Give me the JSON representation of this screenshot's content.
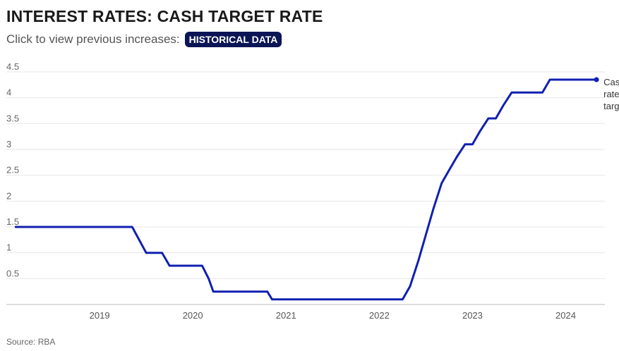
{
  "header": {
    "title": "INTEREST RATES: CASH TARGET RATE",
    "subtitle": "Click to view previous increases:",
    "button_label": "HISTORICAL DATA"
  },
  "footer": {
    "source": "Source: RBA"
  },
  "colors": {
    "line": "#1020b0",
    "button_bg": "#0b1454",
    "grid": "#e6e6e6",
    "axis": "#bbbbbb"
  },
  "chart_data": {
    "type": "line",
    "title": "INTEREST RATES: CASH TARGET RATE",
    "xlabel": "",
    "ylabel": "",
    "xlim": [
      2018.0,
      2024.42
    ],
    "ylim": [
      0,
      4.5
    ],
    "yticks": [
      0.5,
      1,
      1.5,
      2,
      2.5,
      3,
      3.5,
      4,
      4.5
    ],
    "ytick_labels": [
      "0.5",
      "1",
      "1.5",
      "2",
      "2.5",
      "3",
      "3.5",
      "4",
      "4.5"
    ],
    "xticks": [
      2019,
      2020,
      2021,
      2022,
      2023,
      2024
    ],
    "xtick_labels": [
      "2019",
      "2020",
      "2021",
      "2022",
      "2023",
      "2024"
    ],
    "grid": true,
    "end_label": [
      "Cash",
      "rate",
      "target"
    ],
    "series": [
      {
        "name": "Cash rate target",
        "x": [
          2018.1,
          2019.35,
          2019.5,
          2019.67,
          2019.75,
          2020.1,
          2020.17,
          2020.22,
          2020.8,
          2020.85,
          2022.25,
          2022.33,
          2022.42,
          2022.5,
          2022.58,
          2022.67,
          2022.75,
          2022.83,
          2022.92,
          2023.0,
          2023.08,
          2023.17,
          2023.25,
          2023.33,
          2023.42,
          2023.5,
          2023.58,
          2023.75,
          2023.83,
          2023.92,
          2024.0,
          2024.1,
          2024.2,
          2024.33
        ],
        "values": [
          1.5,
          1.5,
          1.0,
          1.0,
          0.75,
          0.75,
          0.5,
          0.25,
          0.25,
          0.1,
          0.1,
          0.35,
          0.85,
          1.35,
          1.85,
          2.35,
          2.6,
          2.85,
          3.1,
          3.1,
          3.35,
          3.6,
          3.6,
          3.85,
          4.1,
          4.1,
          4.1,
          4.1,
          4.35,
          4.35,
          4.35,
          4.35,
          4.35,
          4.35
        ]
      }
    ]
  }
}
